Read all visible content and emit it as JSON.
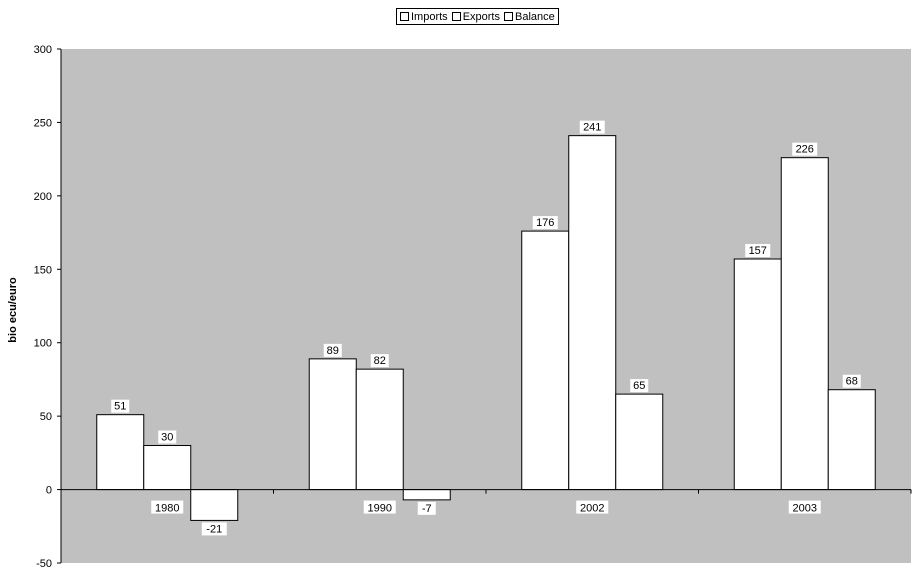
{
  "chart_data": {
    "type": "bar",
    "title": "",
    "xlabel": "",
    "ylabel": "bio ecu/euro",
    "categories": [
      "1980",
      "1990",
      "2002",
      "2003"
    ],
    "series": [
      {
        "name": "Imports",
        "values": [
          51,
          89,
          176,
          157
        ]
      },
      {
        "name": "Exports",
        "values": [
          30,
          82,
          241,
          226
        ]
      },
      {
        "name": "Balance",
        "values": [
          -21,
          -7,
          65,
          68
        ]
      }
    ],
    "ylim": [
      -50,
      300
    ],
    "yticks": [
      "-50",
      "0",
      "50",
      "100",
      "150",
      "200",
      "250",
      "300"
    ],
    "grid": false,
    "legend_position": "top-center",
    "colors": {
      "plot_background": "#c0c0c0",
      "bar_fill": "#ffffff",
      "stroke": "#000000"
    }
  }
}
